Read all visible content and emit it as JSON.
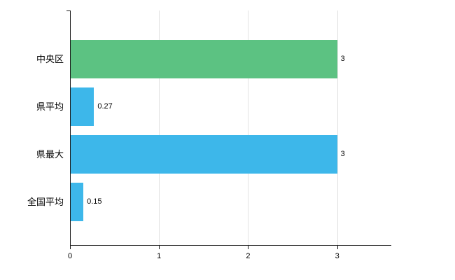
{
  "chart_data": {
    "type": "bar",
    "orientation": "horizontal",
    "title": "",
    "xlabel": "",
    "ylabel": "",
    "categories": [
      "中央区",
      "県平均",
      "県最大",
      "全国平均"
    ],
    "values": [
      3,
      0.27,
      3,
      0.15
    ],
    "value_labels": [
      "3",
      "0.27",
      "3",
      "0.15"
    ],
    "bar_colors": [
      "#5cc282",
      "#3db7ea",
      "#3db7ea",
      "#3db7ea"
    ],
    "x_ticks": [
      0,
      1,
      2,
      3
    ],
    "x_tick_labels": [
      "0",
      "1",
      "2",
      "3"
    ],
    "xlim": [
      0,
      3.6
    ],
    "grid": true,
    "legend": "none",
    "colors": {
      "axis": "#1a1a1a",
      "grid": "#e2e2e2",
      "text": "#000000",
      "background": "#ffffff"
    }
  }
}
